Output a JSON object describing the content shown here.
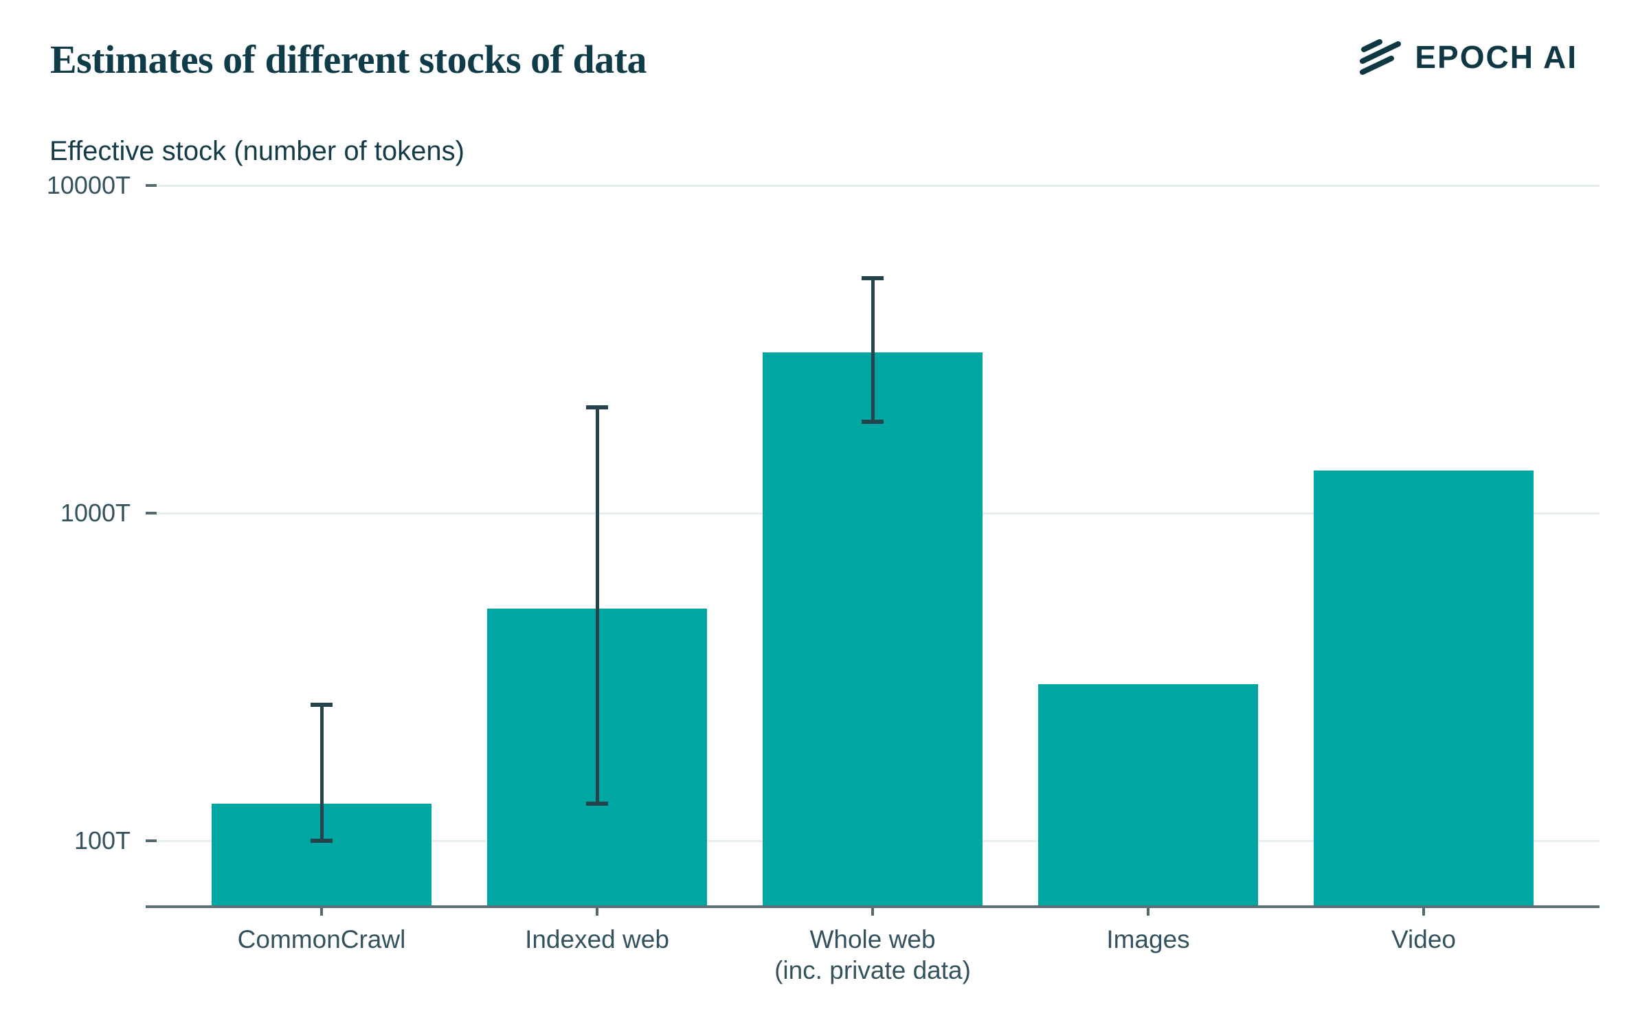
{
  "header": {
    "title": "Estimates of different stocks of data",
    "brand": "EPOCH AI"
  },
  "colors": {
    "bar": "#00A7A2",
    "error_bar": "#24434F",
    "gridline": "#E6EEEE",
    "axis_line": "#5D6F77",
    "tick_dash": "#54686F",
    "title_text": "#103C4A",
    "brand_text": "#0F3844",
    "tick_text": "#33525E"
  },
  "chart_data": {
    "type": "bar",
    "title": "Estimates of different stocks of data",
    "ylabel": "Effective stock (number of tokens)",
    "xlabel": "",
    "y_scale": "log10",
    "y_unit": "trillion tokens",
    "grid": "horizontal",
    "legend": "none",
    "y_ticks": [
      {
        "value": 100,
        "label": "100T"
      },
      {
        "value": 1000,
        "label": "1000T"
      },
      {
        "value": 10000,
        "label": "10000T"
      }
    ],
    "y_axis_bottom_value": 63,
    "categories": [
      "CommonCrawl",
      "Indexed web",
      "Whole web\n(inc. private data)",
      "Images",
      "Video"
    ],
    "values": [
      130,
      510,
      3100,
      300,
      1350
    ],
    "error_bars": [
      {
        "low": 100,
        "high": 260
      },
      {
        "low": 130,
        "high": 2100
      },
      {
        "low": 1900,
        "high": 5200
      },
      null,
      null
    ]
  }
}
